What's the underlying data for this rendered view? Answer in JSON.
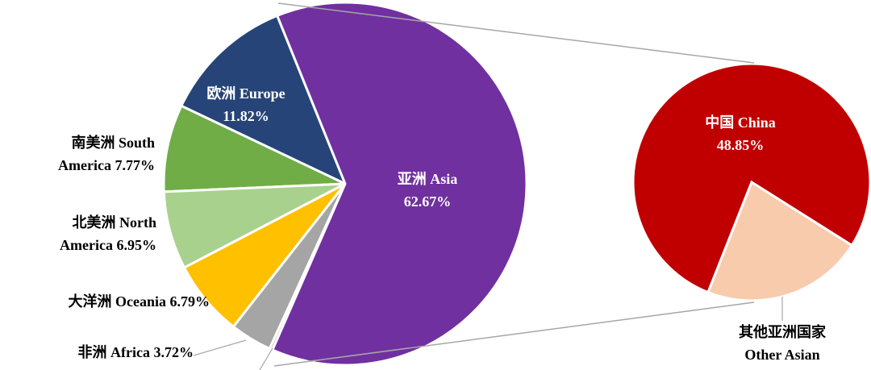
{
  "chart_data": [
    {
      "type": "pie",
      "categories": [
        "亚洲 Asia",
        null,
        "非洲 Africa",
        "大洋洲 Oceania",
        "北美洲 North America",
        "南美洲 South America",
        "欧洲 Europe"
      ],
      "values": [
        62.67,
        0.28,
        3.72,
        6.79,
        6.95,
        7.77,
        11.82
      ],
      "value_labels": [
        "62.67%",
        null,
        "3.72%",
        "6.79%",
        "6.95%",
        "7.77%",
        "11.82%"
      ],
      "colors": [
        "#7030a0",
        "#bfbfbf",
        "#a5a5a5",
        "#ffc000",
        "#a9d18e",
        "#70ad47",
        "#264478"
      ]
    },
    {
      "type": "pie",
      "categories": [
        "中国 China",
        "其他亚洲国家 Other Asian"
      ],
      "values": [
        48.85,
        13.82
      ],
      "value_labels": [
        "48.85%",
        null
      ],
      "colors": [
        "#c00000",
        "#f8cbad"
      ]
    }
  ]
}
